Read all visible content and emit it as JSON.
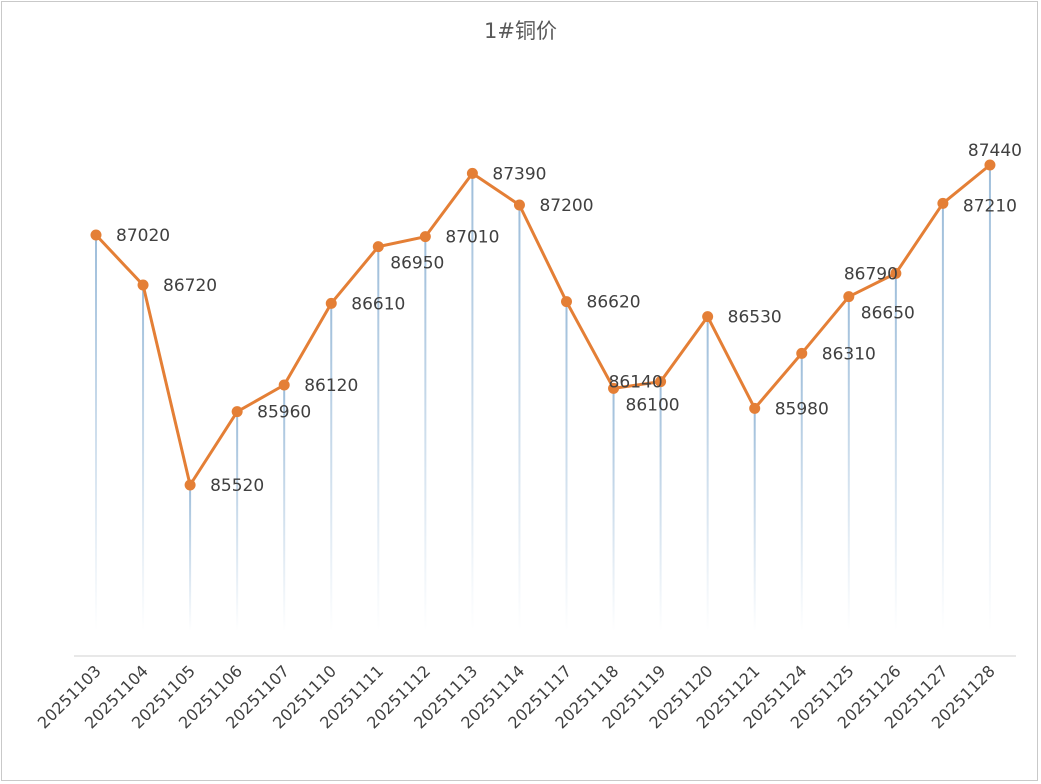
{
  "chart_data": {
    "type": "line",
    "title": "1#铜价",
    "xlabel": "",
    "ylabel": "",
    "ylim": [
      83000,
      88000
    ],
    "grid": false,
    "legend": "none",
    "categories": [
      "20251103",
      "20251104",
      "20251105",
      "20251106",
      "20251107",
      "20251110",
      "20251111",
      "20251112",
      "20251113",
      "20251114",
      "20251117",
      "20251118",
      "20251119",
      "20251120",
      "20251121",
      "20251124",
      "20251125",
      "20251126",
      "20251127",
      "20251128"
    ],
    "series": [
      {
        "name": "1#铜价",
        "values": [
          87020,
          86720,
          85520,
          85960,
          86120,
          86610,
          86950,
          87010,
          87390,
          87200,
          86620,
          86100,
          86140,
          86530,
          85980,
          86310,
          86650,
          86790,
          87210,
          87440
        ]
      }
    ],
    "data_labels": [
      "87020",
      "86720",
      "85520",
      "85960",
      "86120",
      "86610",
      "86950",
      "87010",
      "87390",
      "87200",
      "86620",
      "86100",
      "86140",
      "86530",
      "85980",
      "86310",
      "86650",
      "86790",
      "87210",
      "87440"
    ],
    "colors": {
      "line": "#E47F36",
      "marker": "#E47F36",
      "drop_line": "#9DBDDA",
      "axis": "#d9d9d9"
    }
  }
}
